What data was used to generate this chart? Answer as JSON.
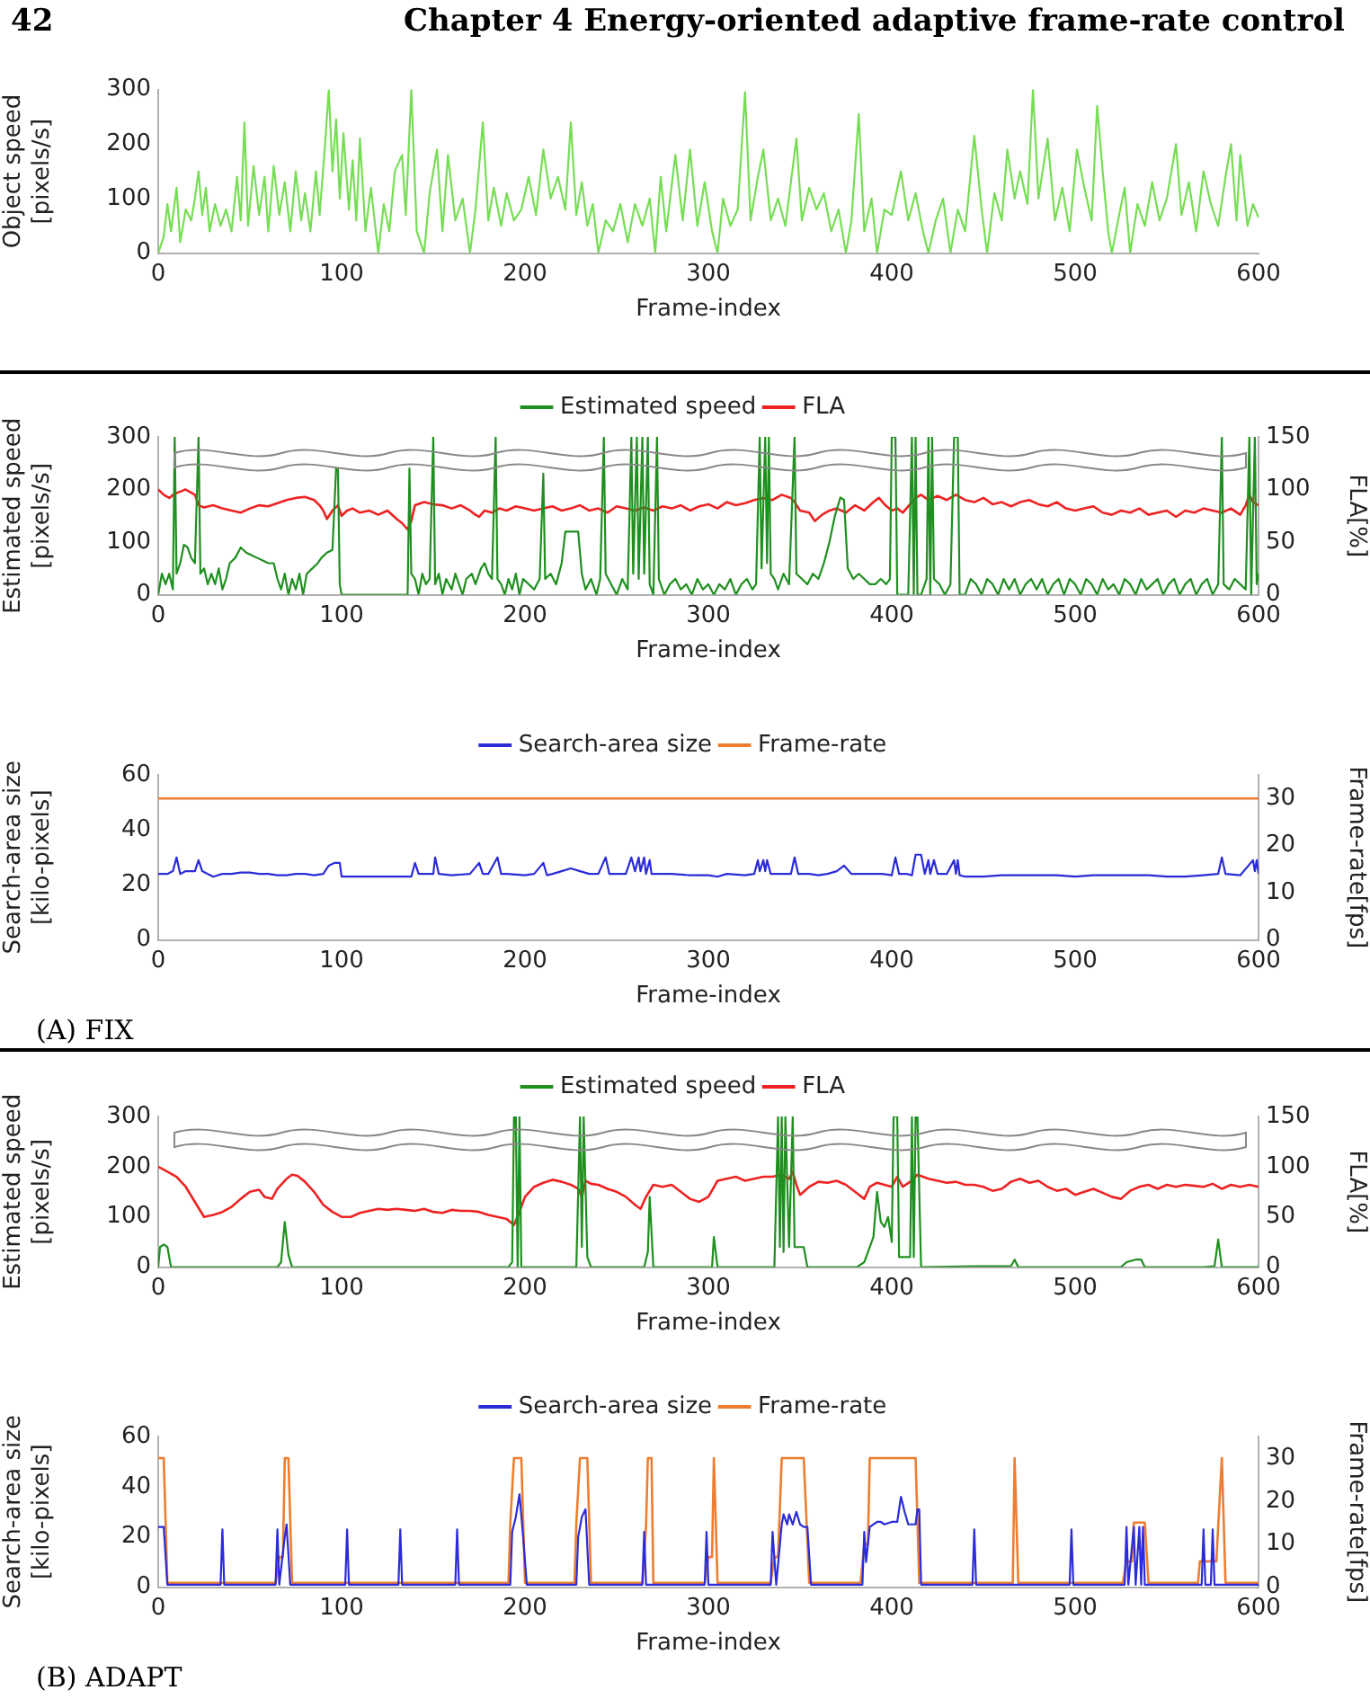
{
  "chart_data": [
    {
      "type": "line",
      "xlabel": "Frame-index",
      "ylabel": "Object speed [pixels/s]",
      "xlim": [
        0,
        600
      ],
      "xticks": [
        0,
        100,
        200,
        300,
        400,
        500,
        600
      ],
      "ylim": [
        0,
        300
      ],
      "yticks": [
        0,
        100,
        200,
        300
      ],
      "marker": "none",
      "line_style": "solid",
      "annotations": [
        "42",
        "Chapter 4    Energy-oriented adaptive frame-rate control"
      ],
      "series": [
        {
          "color": "#77dd55",
          "x": [
            0,
            3,
            5,
            7,
            10,
            12,
            15,
            18,
            20,
            22,
            24,
            26,
            28,
            31,
            34,
            37,
            40,
            43,
            45,
            47,
            49,
            52,
            55,
            58,
            60,
            63,
            66,
            69,
            72,
            75,
            78,
            80,
            83,
            86,
            88,
            91,
            93,
            95,
            97,
            99,
            101,
            104,
            106,
            108,
            110,
            113,
            116,
            120,
            123,
            126,
            129,
            133,
            135,
            138,
            141,
            145,
            148,
            152,
            155,
            158,
            162,
            166,
            170,
            173,
            177,
            180,
            183,
            187,
            190,
            194,
            198,
            202,
            206,
            210,
            214,
            218,
            222,
            225,
            228,
            231,
            234,
            237,
            240,
            244,
            248,
            252,
            256,
            260,
            264,
            268,
            271,
            274,
            277,
            282,
            286,
            290,
            294,
            298,
            302,
            305,
            308,
            312,
            316,
            320,
            323,
            327,
            330,
            334,
            338,
            342,
            345,
            348,
            351,
            355,
            359,
            363,
            367,
            371,
            375,
            378,
            382,
            385,
            389,
            392,
            396,
            400,
            405,
            409,
            413,
            417,
            420,
            424,
            428,
            432,
            436,
            440,
            445,
            449,
            452,
            456,
            460,
            463,
            467,
            470,
            474,
            477,
            480,
            485,
            489,
            493,
            497,
            501,
            505,
            509,
            512,
            515,
            518,
            520,
            524,
            527,
            530,
            534,
            538,
            542,
            546,
            550,
            555,
            558,
            562,
            566,
            570,
            574,
            578,
            582,
            585,
            588,
            590,
            594,
            597,
            600
          ],
          "values": [
            0,
            30,
            90,
            40,
            120,
            20,
            80,
            60,
            100,
            150,
            70,
            120,
            40,
            90,
            50,
            80,
            40,
            140,
            60,
            240,
            50,
            160,
            70,
            140,
            40,
            160,
            70,
            130,
            40,
            150,
            60,
            110,
            40,
            150,
            70,
            200,
            300,
            150,
            245,
            100,
            220,
            80,
            170,
            60,
            210,
            40,
            120,
            0,
            90,
            40,
            150,
            180,
            70,
            300,
            40,
            0,
            110,
            190,
            40,
            180,
            60,
            100,
            0,
            80,
            240,
            60,
            120,
            50,
            110,
            60,
            80,
            140,
            70,
            190,
            100,
            140,
            80,
            240,
            70,
            130,
            50,
            90,
            0,
            60,
            40,
            90,
            20,
            90,
            50,
            100,
            0,
            140,
            40,
            180,
            60,
            190,
            50,
            130,
            40,
            0,
            100,
            50,
            80,
            295,
            60,
            140,
            190,
            60,
            100,
            50,
            130,
            210,
            60,
            120,
            80,
            110,
            40,
            80,
            0,
            60,
            255,
            40,
            100,
            0,
            80,
            70,
            150,
            60,
            110,
            40,
            0,
            60,
            100,
            0,
            80,
            40,
            215,
            80,
            0,
            110,
            60,
            190,
            100,
            150,
            90,
            300,
            100,
            210,
            60,
            120,
            40,
            190,
            120,
            60,
            270,
            150,
            40,
            0,
            70,
            120,
            0,
            90,
            50,
            130,
            60,
            100,
            200,
            70,
            130,
            40,
            150,
            90,
            50,
            140,
            200,
            60,
            180,
            50,
            90,
            65
          ]
        }
      ]
    },
    {
      "type": "line",
      "xlabel": "Frame-index",
      "ylabel": "Estimated speed [pixels/s]",
      "y2label": "FLA[%]",
      "xlim": [
        0,
        600
      ],
      "xticks": [
        0,
        100,
        200,
        300,
        400,
        500,
        600
      ],
      "ylim": [
        0,
        300
      ],
      "yticks": [
        0,
        100,
        200,
        300
      ],
      "y2lim": [
        0,
        150
      ],
      "y2ticks": [
        0,
        50,
        100,
        150
      ],
      "legend": "top",
      "marker": "none",
      "line_style": "solid",
      "series": [
        {
          "name": "Estimated speed",
          "color": "#1f8f1f",
          "x": [
            0,
            2,
            4,
            6,
            8,
            9,
            10,
            12,
            14,
            16,
            18,
            20,
            22,
            23,
            25,
            27,
            29,
            31,
            33,
            35,
            37,
            39,
            42,
            45,
            48,
            51,
            54,
            57,
            60,
            63,
            65,
            67,
            69,
            71,
            73,
            75,
            77,
            79,
            81,
            84,
            87,
            89,
            92,
            95,
            97,
            98,
            99,
            100,
            136,
            137,
            138,
            140,
            142,
            144,
            146,
            148,
            150,
            151,
            153,
            155,
            157,
            160,
            162,
            164,
            166,
            168,
            171,
            173,
            176,
            178,
            180,
            182,
            184,
            185,
            187,
            189,
            191,
            193,
            195,
            197,
            199,
            202,
            205,
            208,
            210,
            211,
            214,
            217,
            220,
            222,
            226,
            229,
            231,
            233,
            236,
            239,
            241,
            243,
            244,
            247,
            250,
            253,
            256,
            258,
            259,
            261,
            262,
            264,
            265,
            267,
            268,
            270,
            272,
            273,
            276,
            279,
            282,
            285,
            288,
            291,
            294,
            297,
            300,
            303,
            306,
            309,
            312,
            315,
            318,
            321,
            324,
            326,
            328,
            329,
            331,
            332,
            333,
            334,
            336,
            338,
            341,
            344,
            347,
            348,
            351,
            354,
            357,
            360,
            363,
            366,
            369,
            372,
            374,
            376,
            379,
            382,
            385,
            388,
            391,
            394,
            397,
            399,
            400,
            402,
            403,
            406,
            409,
            411,
            412,
            413,
            414,
            416,
            419,
            420,
            421,
            422,
            423,
            426,
            429,
            432,
            434,
            436,
            437,
            440,
            443,
            446,
            449,
            452,
            455,
            458,
            461,
            464,
            467,
            470,
            473,
            476,
            479,
            482,
            485,
            488,
            491,
            494,
            497,
            500,
            503,
            506,
            509,
            512,
            515,
            518,
            521,
            524,
            527,
            530,
            533,
            536,
            539,
            542,
            545,
            548,
            551,
            554,
            557,
            560,
            563,
            566,
            569,
            572,
            575,
            578,
            580,
            581,
            584,
            587,
            590,
            593,
            595,
            596,
            598,
            599,
            600
          ],
          "values": [
            0,
            40,
            20,
            40,
            10,
            300,
            40,
            60,
            95,
            90,
            70,
            60,
            300,
            40,
            50,
            20,
            40,
            20,
            50,
            10,
            30,
            60,
            70,
            90,
            80,
            75,
            70,
            65,
            60,
            60,
            30,
            10,
            40,
            0,
            30,
            10,
            40,
            0,
            40,
            50,
            60,
            70,
            80,
            85,
            240,
            240,
            20,
            0,
            0,
            240,
            40,
            30,
            0,
            40,
            20,
            30,
            300,
            20,
            40,
            0,
            30,
            10,
            40,
            20,
            0,
            30,
            40,
            20,
            50,
            60,
            40,
            30,
            300,
            30,
            20,
            0,
            30,
            10,
            40,
            0,
            30,
            20,
            10,
            30,
            230,
            30,
            40,
            20,
            60,
            120,
            120,
            120,
            40,
            10,
            30,
            0,
            30,
            300,
            40,
            20,
            0,
            30,
            10,
            300,
            40,
            300,
            30,
            300,
            40,
            300,
            20,
            0,
            300,
            30,
            0,
            20,
            30,
            10,
            20,
            0,
            30,
            10,
            20,
            0,
            20,
            10,
            30,
            0,
            20,
            30,
            10,
            20,
            300,
            50,
            300,
            60,
            300,
            40,
            30,
            10,
            40,
            20,
            300,
            40,
            30,
            20,
            40,
            30,
            60,
            100,
            150,
            185,
            180,
            50,
            30,
            40,
            30,
            20,
            20,
            30,
            20,
            30,
            300,
            300,
            0,
            0,
            0,
            300,
            0,
            300,
            0,
            0,
            30,
            300,
            0,
            300,
            30,
            20,
            0,
            20,
            300,
            300,
            0,
            0,
            30,
            20,
            0,
            30,
            20,
            0,
            30,
            10,
            30,
            0,
            20,
            30,
            10,
            30,
            0,
            20,
            30,
            0,
            30,
            20,
            0,
            30,
            20,
            0,
            30,
            10,
            20,
            0,
            30,
            20,
            0,
            30,
            10,
            20,
            30,
            0,
            20,
            30,
            0,
            20,
            30,
            0,
            20,
            30,
            0,
            20,
            300,
            20,
            10,
            30,
            20,
            10,
            300,
            0,
            300,
            20,
            40
          ]
        },
        {
          "name": "FLA",
          "color": "#ee2222",
          "axis": "y2",
          "x": [
            0,
            3,
            6,
            9,
            12,
            15,
            18,
            20,
            22,
            25,
            30,
            35,
            40,
            45,
            50,
            55,
            60,
            65,
            70,
            75,
            80,
            85,
            88,
            90,
            92,
            95,
            98,
            100,
            103,
            106,
            110,
            115,
            120,
            125,
            130,
            133,
            136,
            138,
            140,
            145,
            150,
            155,
            160,
            165,
            170,
            173,
            175,
            178,
            182,
            186,
            190,
            195,
            200,
            205,
            210,
            215,
            220,
            225,
            230,
            235,
            240,
            245,
            250,
            255,
            260,
            265,
            270,
            275,
            280,
            285,
            290,
            295,
            300,
            305,
            310,
            315,
            320,
            325,
            330,
            335,
            340,
            345,
            347,
            350,
            355,
            358,
            362,
            366,
            370,
            375,
            380,
            385,
            390,
            393,
            396,
            400,
            403,
            406,
            410,
            413,
            416,
            420,
            425,
            430,
            435,
            440,
            445,
            450,
            455,
            460,
            465,
            470,
            475,
            480,
            485,
            490,
            495,
            500,
            505,
            510,
            515,
            520,
            525,
            530,
            535,
            540,
            545,
            550,
            555,
            560,
            565,
            570,
            575,
            580,
            585,
            590,
            593,
            595,
            597,
            600
          ],
          "values": [
            100,
            95,
            92,
            96,
            98,
            100,
            97,
            95,
            85,
            83,
            85,
            82,
            80,
            78,
            82,
            85,
            84,
            87,
            90,
            92,
            93,
            90,
            85,
            80,
            72,
            80,
            85,
            75,
            80,
            82,
            78,
            80,
            76,
            80,
            72,
            68,
            62,
            70,
            85,
            88,
            86,
            85,
            82,
            85,
            80,
            76,
            74,
            80,
            78,
            82,
            80,
            84,
            82,
            80,
            82,
            84,
            80,
            82,
            85,
            80,
            82,
            78,
            84,
            82,
            80,
            83,
            80,
            84,
            82,
            85,
            80,
            84,
            86,
            82,
            88,
            85,
            87,
            90,
            92,
            90,
            95,
            92,
            88,
            80,
            78,
            70,
            76,
            80,
            82,
            78,
            85,
            80,
            88,
            92,
            86,
            80,
            82,
            78,
            86,
            92,
            95,
            90,
            94,
            90,
            95,
            90,
            88,
            92,
            86,
            88,
            84,
            88,
            90,
            86,
            84,
            88,
            82,
            80,
            82,
            84,
            78,
            76,
            80,
            78,
            82,
            76,
            78,
            80,
            74,
            80,
            78,
            82,
            80,
            78,
            82,
            76,
            85,
            95,
            88,
            85
          ]
        }
      ]
    },
    {
      "type": "line",
      "xlabel": "Frame-index",
      "ylabel": "Search-area size [kilo-pixels]",
      "y2label": "Frame-rate[fps]",
      "xlim": [
        0,
        600
      ],
      "xticks": [
        0,
        100,
        200,
        300,
        400,
        500,
        600
      ],
      "ylim": [
        0,
        60
      ],
      "yticks": [
        0,
        20,
        40,
        60
      ],
      "y2lim": [
        0,
        35
      ],
      "y2ticks": [
        0,
        10,
        20,
        30
      ],
      "legend": "top",
      "marker": "none",
      "line_style": "solid",
      "annotations": [
        "(A) FIX"
      ],
      "series": [
        {
          "name": "Search-area size",
          "color": "#2b2bd9",
          "x": [
            0,
            5,
            8,
            10,
            12,
            15,
            20,
            22,
            24,
            27,
            30,
            35,
            40,
            45,
            50,
            55,
            60,
            65,
            70,
            75,
            80,
            85,
            90,
            93,
            96,
            99,
            100,
            110,
            120,
            130,
            138,
            140,
            142,
            145,
            150,
            151,
            153,
            160,
            170,
            175,
            177,
            180,
            185,
            187,
            190,
            200,
            205,
            210,
            212,
            215,
            220,
            225,
            230,
            235,
            240,
            244,
            246,
            250,
            255,
            258,
            260,
            262,
            263,
            265,
            266,
            268,
            269,
            275,
            280,
            290,
            300,
            305,
            310,
            320,
            325,
            327,
            328,
            330,
            331,
            332,
            334,
            340,
            345,
            347,
            349,
            355,
            360,
            365,
            370,
            374,
            378,
            385,
            390,
            395,
            400,
            402,
            404,
            408,
            411,
            413,
            416,
            418,
            420,
            421,
            423,
            425,
            430,
            434,
            435,
            436,
            437,
            440,
            450,
            460,
            470,
            480,
            490,
            500,
            510,
            520,
            530,
            540,
            550,
            560,
            570,
            578,
            580,
            582,
            590,
            597,
            598,
            599,
            600
          ],
          "values": [
            24,
            24,
            25,
            30,
            24,
            25,
            25,
            29,
            25,
            24,
            23,
            24,
            24,
            24.5,
            24.5,
            24,
            24,
            23.5,
            23.5,
            24,
            24,
            23.5,
            24,
            27,
            28,
            28,
            23,
            23,
            23,
            23,
            23,
            28,
            24,
            24,
            24,
            30,
            24,
            23.5,
            24,
            28,
            24,
            24,
            30,
            24,
            24,
            23.5,
            24,
            28,
            23.5,
            24,
            25,
            26,
            25,
            24,
            24,
            30,
            24,
            24,
            24,
            30,
            25,
            30,
            25,
            30,
            24,
            29,
            24,
            24,
            24,
            23.5,
            23.5,
            23,
            24,
            23.5,
            24,
            29,
            25,
            29,
            25,
            29,
            24,
            24,
            24,
            30,
            24,
            24,
            23.5,
            24,
            25,
            27,
            24,
            24,
            24,
            24,
            23.5,
            30,
            24,
            24,
            23.5,
            31,
            31,
            24,
            29,
            24,
            29,
            24,
            24,
            29,
            24,
            29,
            23.5,
            23,
            23,
            23.5,
            23.5,
            23.5,
            23.5,
            23,
            23.5,
            23.5,
            23.5,
            23.5,
            23,
            23,
            23.5,
            24,
            30,
            24,
            23.5,
            29,
            25,
            29,
            24
          ]
        },
        {
          "name": "Frame-rate",
          "color": "#ed7d31",
          "axis": "y2",
          "x": [
            0,
            600
          ],
          "values": [
            30,
            30
          ]
        }
      ]
    },
    {
      "type": "line",
      "xlabel": "Frame-index",
      "ylabel": "Estimated speed [pixels/s]",
      "y2label": "FLA[%]",
      "xlim": [
        0,
        600
      ],
      "xticks": [
        0,
        100,
        200,
        300,
        400,
        500,
        600
      ],
      "ylim": [
        0,
        300
      ],
      "yticks": [
        0,
        100,
        200,
        300
      ],
      "y2lim": [
        0,
        150
      ],
      "y2ticks": [
        0,
        50,
        100,
        150
      ],
      "legend": "top",
      "marker": "none",
      "line_style": "solid",
      "series": [
        {
          "name": "Estimated speed",
          "color": "#1f8f1f",
          "x": [
            0,
            1,
            3,
            5,
            7,
            65,
            67,
            69,
            71,
            73,
            191,
            193,
            194,
            195,
            196,
            197,
            198,
            228,
            230,
            231,
            232,
            234,
            236,
            265,
            267,
            268,
            270,
            302,
            303,
            305,
            336,
            338,
            339,
            340,
            341,
            342,
            344,
            346,
            347,
            350,
            352,
            354,
            381,
            385,
            390,
            392,
            394,
            396,
            398,
            400,
            401,
            403,
            404,
            410,
            411,
            412,
            413,
            414,
            416,
            445,
            460,
            465,
            467,
            469,
            525,
            528,
            533,
            536,
            538,
            570,
            576,
            578,
            580,
            600
          ],
          "values": [
            0,
            40,
            45,
            40,
            0,
            0,
            10,
            90,
            25,
            0,
            0,
            10,
            300,
            300,
            0,
            300,
            0,
            0,
            300,
            40,
            300,
            20,
            0,
            0,
            30,
            140,
            0,
            0,
            60,
            0,
            0,
            300,
            40,
            300,
            30,
            300,
            40,
            300,
            40,
            40,
            40,
            0,
            0,
            10,
            60,
            150,
            90,
            80,
            100,
            50,
            300,
            300,
            20,
            20,
            300,
            20,
            300,
            300,
            0,
            2,
            2,
            2,
            15,
            0,
            0,
            10,
            15,
            15,
            0,
            0,
            2,
            55,
            0,
            0
          ]
        },
        {
          "name": "FLA",
          "color": "#ee2222",
          "axis": "y2",
          "x": [
            0,
            5,
            10,
            15,
            20,
            25,
            30,
            35,
            40,
            45,
            50,
            55,
            58,
            62,
            65,
            70,
            73,
            76,
            80,
            85,
            90,
            95,
            100,
            105,
            110,
            115,
            120,
            125,
            130,
            135,
            140,
            145,
            150,
            155,
            160,
            165,
            170,
            175,
            180,
            185,
            190,
            194,
            197,
            200,
            205,
            210,
            215,
            220,
            225,
            229,
            231,
            233,
            236,
            240,
            245,
            250,
            255,
            260,
            263,
            266,
            270,
            275,
            280,
            285,
            290,
            295,
            300,
            305,
            310,
            315,
            320,
            325,
            330,
            335,
            340,
            344,
            346,
            348,
            350,
            355,
            360,
            365,
            370,
            375,
            380,
            385,
            388,
            392,
            396,
            400,
            403,
            406,
            410,
            414,
            417,
            420,
            425,
            430,
            435,
            440,
            445,
            450,
            455,
            460,
            465,
            470,
            475,
            480,
            485,
            490,
            495,
            500,
            505,
            510,
            515,
            520,
            525,
            530,
            535,
            540,
            545,
            550,
            555,
            560,
            565,
            570,
            575,
            580,
            585,
            590,
            595,
            600
          ],
          "values": [
            100,
            95,
            90,
            80,
            65,
            50,
            52,
            55,
            60,
            68,
            75,
            77,
            70,
            68,
            78,
            88,
            92,
            91,
            85,
            75,
            62,
            55,
            50,
            50,
            54,
            56,
            58,
            57,
            58,
            57,
            56,
            58,
            55,
            54,
            57,
            56,
            56,
            55,
            52,
            50,
            48,
            42,
            55,
            70,
            80,
            84,
            87,
            85,
            82,
            78,
            70,
            86,
            83,
            82,
            78,
            75,
            70,
            62,
            58,
            70,
            82,
            80,
            82,
            75,
            68,
            65,
            70,
            86,
            88,
            90,
            86,
            88,
            90,
            90,
            92,
            88,
            95,
            82,
            72,
            80,
            85,
            84,
            86,
            82,
            75,
            68,
            80,
            84,
            82,
            80,
            90,
            80,
            85,
            92,
            90,
            88,
            86,
            84,
            85,
            82,
            82,
            80,
            76,
            78,
            85,
            88,
            84,
            86,
            80,
            76,
            78,
            72,
            75,
            78,
            74,
            70,
            68,
            76,
            80,
            82,
            78,
            82,
            80,
            82,
            81,
            80,
            83,
            78,
            82,
            80,
            82,
            80
          ]
        }
      ]
    },
    {
      "type": "line",
      "xlabel": "Frame-index",
      "ylabel": "Search-area size [kilo-pixels]",
      "y2label": "Frame-rate[fps]",
      "xlim": [
        0,
        600
      ],
      "xticks": [
        0,
        100,
        200,
        300,
        400,
        500,
        600
      ],
      "ylim": [
        0,
        60
      ],
      "yticks": [
        0,
        20,
        40,
        60
      ],
      "y2lim": [
        0,
        35
      ],
      "y2ticks": [
        0,
        10,
        20,
        30
      ],
      "legend": "top",
      "marker": "none",
      "line_style": "solid",
      "annotations": [
        "(B) ADAPT"
      ],
      "series": [
        {
          "name": "Search-area size",
          "color": "#2b2bd9",
          "x": [
            0,
            3,
            5,
            34,
            35,
            36,
            64,
            65,
            66,
            69,
            70,
            72,
            102,
            103,
            104,
            131,
            132,
            133,
            162,
            163,
            164,
            192,
            193,
            195,
            197,
            199,
            201,
            228,
            229,
            231,
            233,
            235,
            264,
            265,
            266,
            298,
            299,
            300,
            334,
            335,
            337,
            340,
            341,
            343,
            344,
            346,
            348,
            350,
            352,
            354,
            356,
            384,
            385,
            386,
            388,
            392,
            394,
            396,
            400,
            403,
            405,
            407,
            409,
            413,
            414,
            415,
            416,
            444,
            445,
            446,
            497,
            498,
            499,
            527,
            528,
            529,
            532,
            533,
            535,
            536,
            537,
            538,
            569,
            570,
            571,
            574,
            575,
            576,
            600
          ],
          "values": [
            24,
            24,
            1,
            1,
            23,
            1,
            1,
            23,
            1,
            20,
            25,
            1,
            1,
            23,
            1,
            1,
            23,
            1,
            1,
            23,
            1,
            1,
            22,
            28,
            37,
            20,
            1,
            1,
            20,
            28,
            31,
            1,
            1,
            22,
            1,
            1,
            22,
            1,
            1,
            22,
            1,
            25,
            29,
            25,
            29,
            25,
            30,
            25,
            24,
            24,
            1,
            1,
            22,
            10,
            24,
            26,
            26,
            25,
            26,
            26,
            36,
            30,
            25,
            25,
            31,
            31,
            1,
            1,
            23,
            1,
            1,
            23,
            1,
            1,
            24,
            1,
            24,
            1,
            24,
            1,
            24,
            1,
            1,
            23,
            1,
            1,
            23,
            1,
            1
          ]
        },
        {
          "name": "Frame-rate",
          "color": "#ed7d31",
          "axis": "y2",
          "x": [
            0,
            3,
            5,
            64,
            66,
            68,
            69,
            71,
            73,
            191,
            192,
            194,
            198,
            200,
            227,
            228,
            230,
            234,
            236,
            264,
            266,
            267,
            269,
            270,
            298,
            300,
            302,
            303,
            305,
            334,
            336,
            338,
            340,
            352,
            355,
            383,
            385,
            387,
            388,
            413,
            415,
            466,
            467,
            469,
            526,
            528,
            531,
            532,
            538,
            540,
            567,
            568,
            577,
            580,
            582,
            600
          ],
          "values": [
            30,
            30,
            1,
            1,
            7,
            7,
            30,
            30,
            1,
            1,
            15,
            30,
            30,
            1,
            1,
            15,
            30,
            30,
            1,
            1,
            14,
            30,
            30,
            1,
            1,
            7,
            7,
            30,
            1,
            1,
            7,
            7,
            30,
            30,
            1,
            1,
            10,
            10,
            30,
            30,
            1,
            1,
            30,
            1,
            1,
            6,
            6,
            15,
            15,
            1,
            1,
            6,
            6,
            30,
            1,
            1
          ]
        }
      ]
    }
  ]
}
